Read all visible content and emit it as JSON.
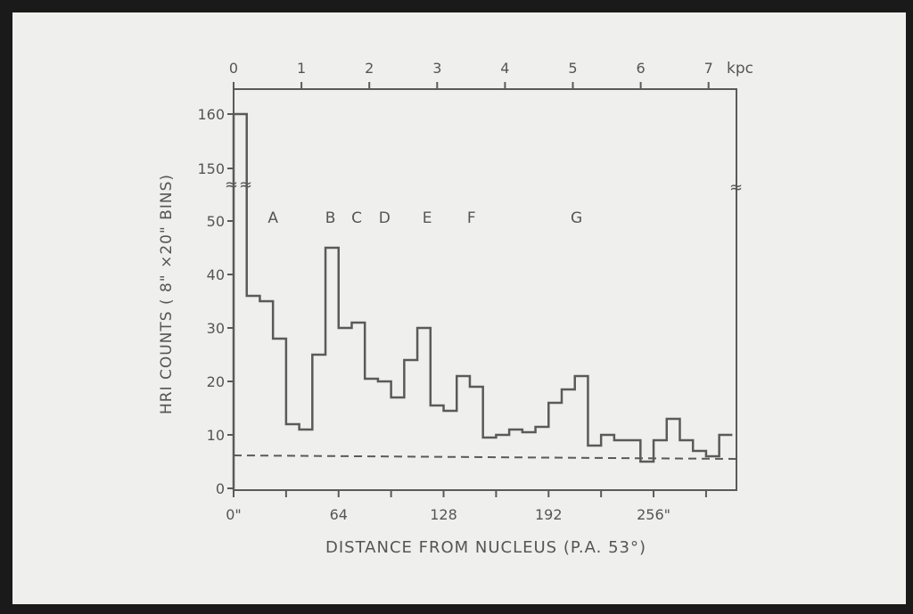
{
  "chart_data": {
    "type": "step",
    "xlabel": "DISTANCE FROM NUCLEUS (P.A. 53°)",
    "ylabel": "HRI COUNTS ( 8\" ×20\" BINS)",
    "top_axis_unit": "kpc",
    "top_ticks": [
      "0",
      "1",
      "2",
      "3",
      "4",
      "5",
      "6",
      "7"
    ],
    "x_tick_labels": [
      {
        "x": 0,
        "label": "0\""
      },
      {
        "x": 64,
        "label": "64"
      },
      {
        "x": 128,
        "label": "128"
      },
      {
        "x": 192,
        "label": "192"
      },
      {
        "x": 256,
        "label": "256\""
      }
    ],
    "y_tick_labels": [
      "0",
      "10",
      "20",
      "30",
      "40",
      "50",
      "150",
      "160"
    ],
    "xlim": [
      0,
      304
    ],
    "ylim": [
      0,
      165
    ],
    "y_axis_break": [
      55,
      145
    ],
    "bin_width": 8,
    "values": [
      160,
      36,
      35,
      28,
      12,
      11,
      25,
      45,
      30,
      31,
      20.5,
      20,
      17,
      24,
      30,
      15.5,
      14.5,
      21,
      19,
      9.5,
      10,
      11,
      10.5,
      11.5,
      16,
      18.5,
      21,
      8,
      10,
      9,
      9,
      5,
      9,
      13,
      9,
      7,
      6,
      10
    ],
    "background_level": 6,
    "annotations": [
      {
        "x": 24,
        "label": "A"
      },
      {
        "x": 59,
        "label": "B"
      },
      {
        "x": 75,
        "label": "C"
      },
      {
        "x": 92,
        "label": "D"
      },
      {
        "x": 118,
        "label": "E"
      },
      {
        "x": 145,
        "label": "F"
      },
      {
        "x": 209,
        "label": "G"
      }
    ],
    "colors": {
      "line": "#5a5a5a",
      "paper": "#efefed"
    }
  }
}
